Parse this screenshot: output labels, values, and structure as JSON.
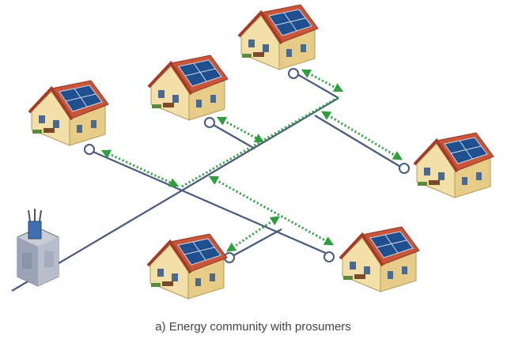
{
  "caption": "a) Energy community with prosumers"
}
